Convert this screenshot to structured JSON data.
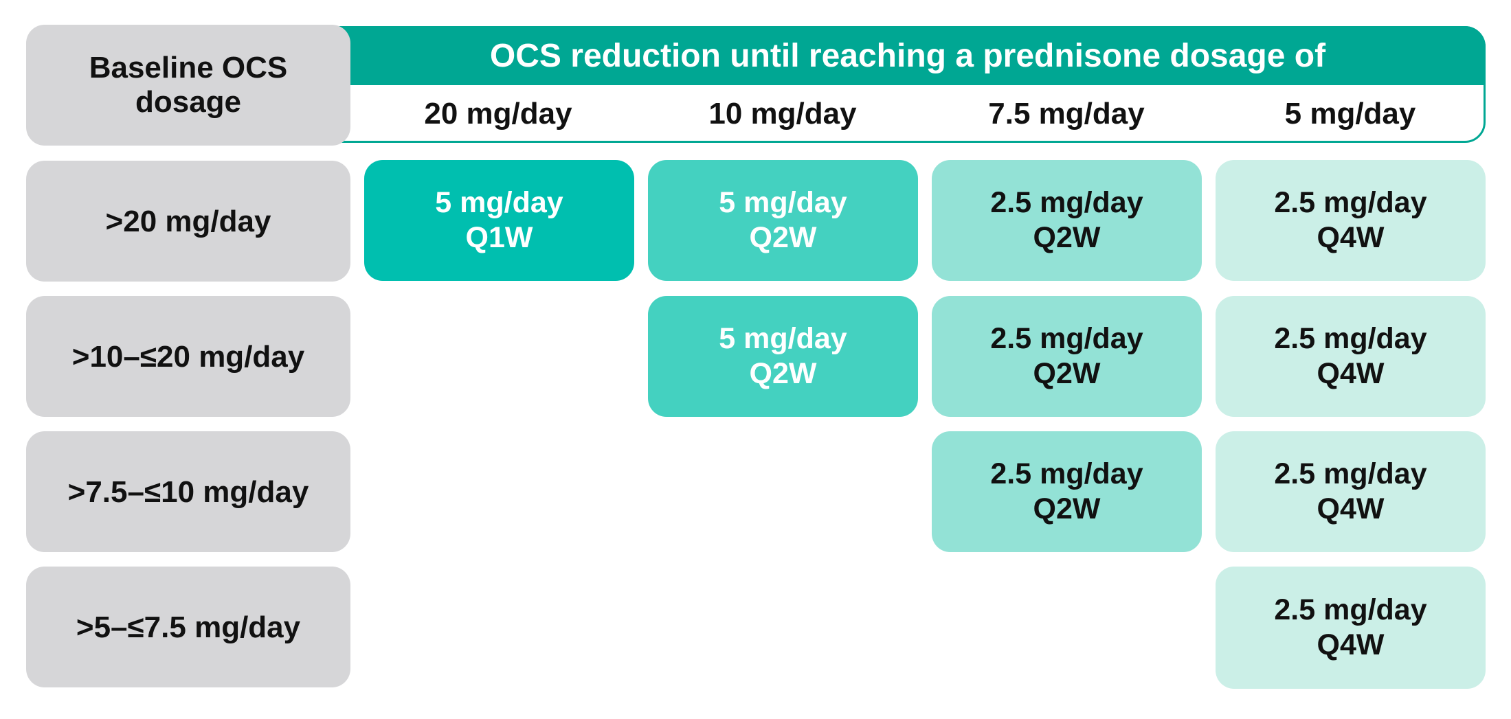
{
  "header": {
    "baseline_label_line1": "Baseline OCS",
    "baseline_label_line2": "dosage",
    "reduction_title": "OCS reduction until reaching a prednisone dosage of",
    "columns": [
      "20 mg/day",
      "10 mg/day",
      "7.5 mg/day",
      "5 mg/day"
    ]
  },
  "rows": [
    {
      "baseline": ">20 mg/day",
      "cells": [
        {
          "dose": "5 mg/day",
          "freq": "Q1W"
        },
        {
          "dose": "5 mg/day",
          "freq": "Q2W"
        },
        {
          "dose": "2.5 mg/day",
          "freq": "Q2W"
        },
        {
          "dose": "2.5 mg/day",
          "freq": "Q4W"
        }
      ]
    },
    {
      "baseline": ">10–≤20 mg/day",
      "cells": [
        null,
        {
          "dose": "5 mg/day",
          "freq": "Q2W"
        },
        {
          "dose": "2.5 mg/day",
          "freq": "Q2W"
        },
        {
          "dose": "2.5 mg/day",
          "freq": "Q4W"
        }
      ]
    },
    {
      "baseline": ">7.5–≤10 mg/day",
      "cells": [
        null,
        null,
        {
          "dose": "2.5 mg/day",
          "freq": "Q2W"
        },
        {
          "dose": "2.5 mg/day",
          "freq": "Q4W"
        }
      ]
    },
    {
      "baseline": ">5–≤7.5 mg/day",
      "cells": [
        null,
        null,
        null,
        {
          "dose": "2.5 mg/day",
          "freq": "Q4W"
        }
      ]
    }
  ],
  "colors": {
    "header_teal": "#00a793",
    "baseline_gray": "#d6d6d8",
    "col_20": "#00bfaf",
    "col_10": "#44d1c0",
    "col_7_5": "#93e2d6",
    "col_5": "#cbefe7"
  }
}
